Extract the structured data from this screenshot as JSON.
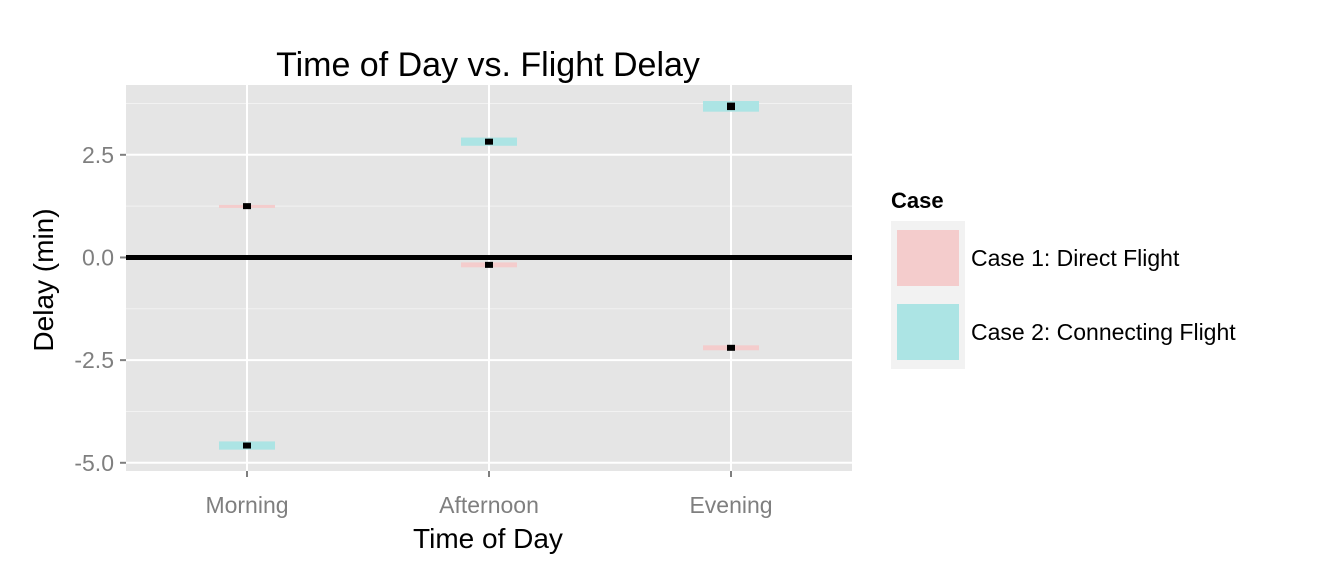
{
  "chart_data": {
    "type": "crossbar",
    "title": "Time of Day vs. Flight Delay",
    "xlabel": "Time of Day",
    "ylabel": "Delay (min)",
    "categories": [
      "Morning",
      "Afternoon",
      "Evening"
    ],
    "yticks": [
      -5.0,
      -2.5,
      0.0,
      2.5
    ],
    "ytick_labels": [
      "-5.0",
      "-2.5",
      "0.0",
      "2.5"
    ],
    "ylim": [
      -5.2,
      4.2
    ],
    "reference_line": 0,
    "grid": true,
    "legend": {
      "title": "Case",
      "position": "right"
    },
    "series": [
      {
        "name": "Case 1: Direct Flight",
        "color": "#f4cccc",
        "values": [
          {
            "x": "Morning",
            "y": 1.25,
            "lower": 1.22,
            "upper": 1.28
          },
          {
            "x": "Afternoon",
            "y": -0.18,
            "lower": -0.24,
            "upper": -0.12
          },
          {
            "x": "Evening",
            "y": -2.2,
            "lower": -2.26,
            "upper": -2.14
          }
        ]
      },
      {
        "name": "Case 2: Connecting Flight",
        "color": "#ace4e4",
        "values": [
          {
            "x": "Morning",
            "y": -4.58,
            "lower": -4.68,
            "upper": -4.48
          },
          {
            "x": "Afternoon",
            "y": 2.82,
            "lower": 2.72,
            "upper": 2.92
          },
          {
            "x": "Evening",
            "y": 3.68,
            "lower": 3.55,
            "upper": 3.81
          }
        ]
      }
    ],
    "colors": {
      "panel": "#e5e5e5",
      "grid_major": "#ffffff",
      "grid_minor": "#f2f2f2",
      "legend_key_bg": "#f2f2f2",
      "marker": "#000000"
    }
  }
}
